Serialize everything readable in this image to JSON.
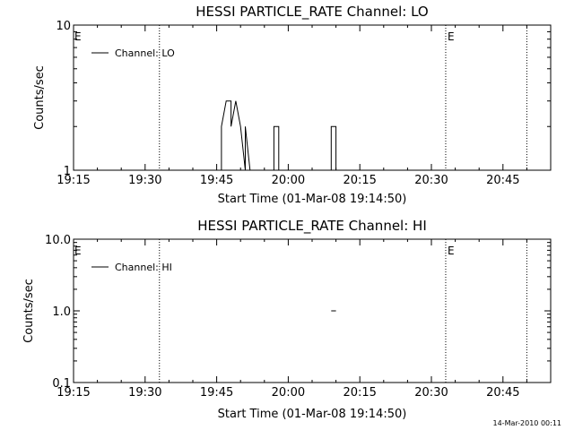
{
  "chart_data": [
    {
      "type": "line",
      "title": "HESSI PARTICLE_RATE Channel: LO",
      "xlabel": "Start Time (01-Mar-08 19:14:50)",
      "ylabel": "Counts/sec",
      "y_scale": "log",
      "ylim": [
        1,
        10
      ],
      "y_tick_labels": [
        "1",
        "10"
      ],
      "y_tick_values": [
        1,
        10
      ],
      "xlim": [
        "19:15",
        "20:55"
      ],
      "x_tick_labels": [
        "19:15",
        "19:30",
        "19:45",
        "20:00",
        "20:15",
        "20:30",
        "20:45"
      ],
      "x_tick_values": [
        "19:15",
        "19:30",
        "19:45",
        "20:00",
        "20:15",
        "20:30",
        "20:45"
      ],
      "legend_position": "top-left",
      "series": [
        {
          "name": "Channel: LO",
          "x": [
            "19:15",
            "19:46",
            "19:46",
            "19:47",
            "19:48",
            "19:48",
            "19:49",
            "19:49",
            "19:50",
            "19:50",
            "19:51",
            "19:51",
            "19:52",
            "19:52",
            "19:53",
            "19:53",
            "19:57",
            "19:57",
            "19:58",
            "19:58",
            "20:09",
            "20:09",
            "20:10",
            "20:10"
          ],
          "y": [
            1,
            1,
            2,
            3,
            3,
            2,
            3,
            3,
            2,
            2,
            1,
            2,
            1,
            1,
            1,
            1,
            1,
            2,
            2,
            1,
            1,
            2,
            2,
            1
          ]
        }
      ],
      "flag_markers": [
        {
          "time": "19:33",
          "label": ""
        },
        {
          "time": "20:33",
          "label": "E"
        },
        {
          "time": "20:50",
          "label": ""
        }
      ],
      "start_flag": "E"
    },
    {
      "type": "line",
      "title": "HESSI PARTICLE_RATE Channel: HI",
      "xlabel": "Start Time (01-Mar-08 19:14:50)",
      "ylabel": "Counts/sec",
      "y_scale": "log",
      "ylim": [
        0.1,
        10
      ],
      "y_tick_labels": [
        "0.1",
        "1.0",
        "10.0"
      ],
      "y_tick_values": [
        0.1,
        1,
        10
      ],
      "xlim": [
        "19:15",
        "20:55"
      ],
      "x_tick_labels": [
        "19:15",
        "19:30",
        "19:45",
        "20:00",
        "20:15",
        "20:30",
        "20:45"
      ],
      "x_tick_values": [
        "19:15",
        "19:30",
        "19:45",
        "20:00",
        "20:15",
        "20:30",
        "20:45"
      ],
      "legend_position": "top-left",
      "series": [
        {
          "name": "Channel: HI",
          "x": [
            "20:09",
            "20:10"
          ],
          "y": [
            1,
            1
          ]
        }
      ],
      "flag_markers": [
        {
          "time": "19:33",
          "label": ""
        },
        {
          "time": "20:33",
          "label": "E"
        },
        {
          "time": "20:50",
          "label": ""
        }
      ],
      "start_flag": "E"
    }
  ],
  "footer": {
    "timestamp": "14-Mar-2010 00:11"
  }
}
